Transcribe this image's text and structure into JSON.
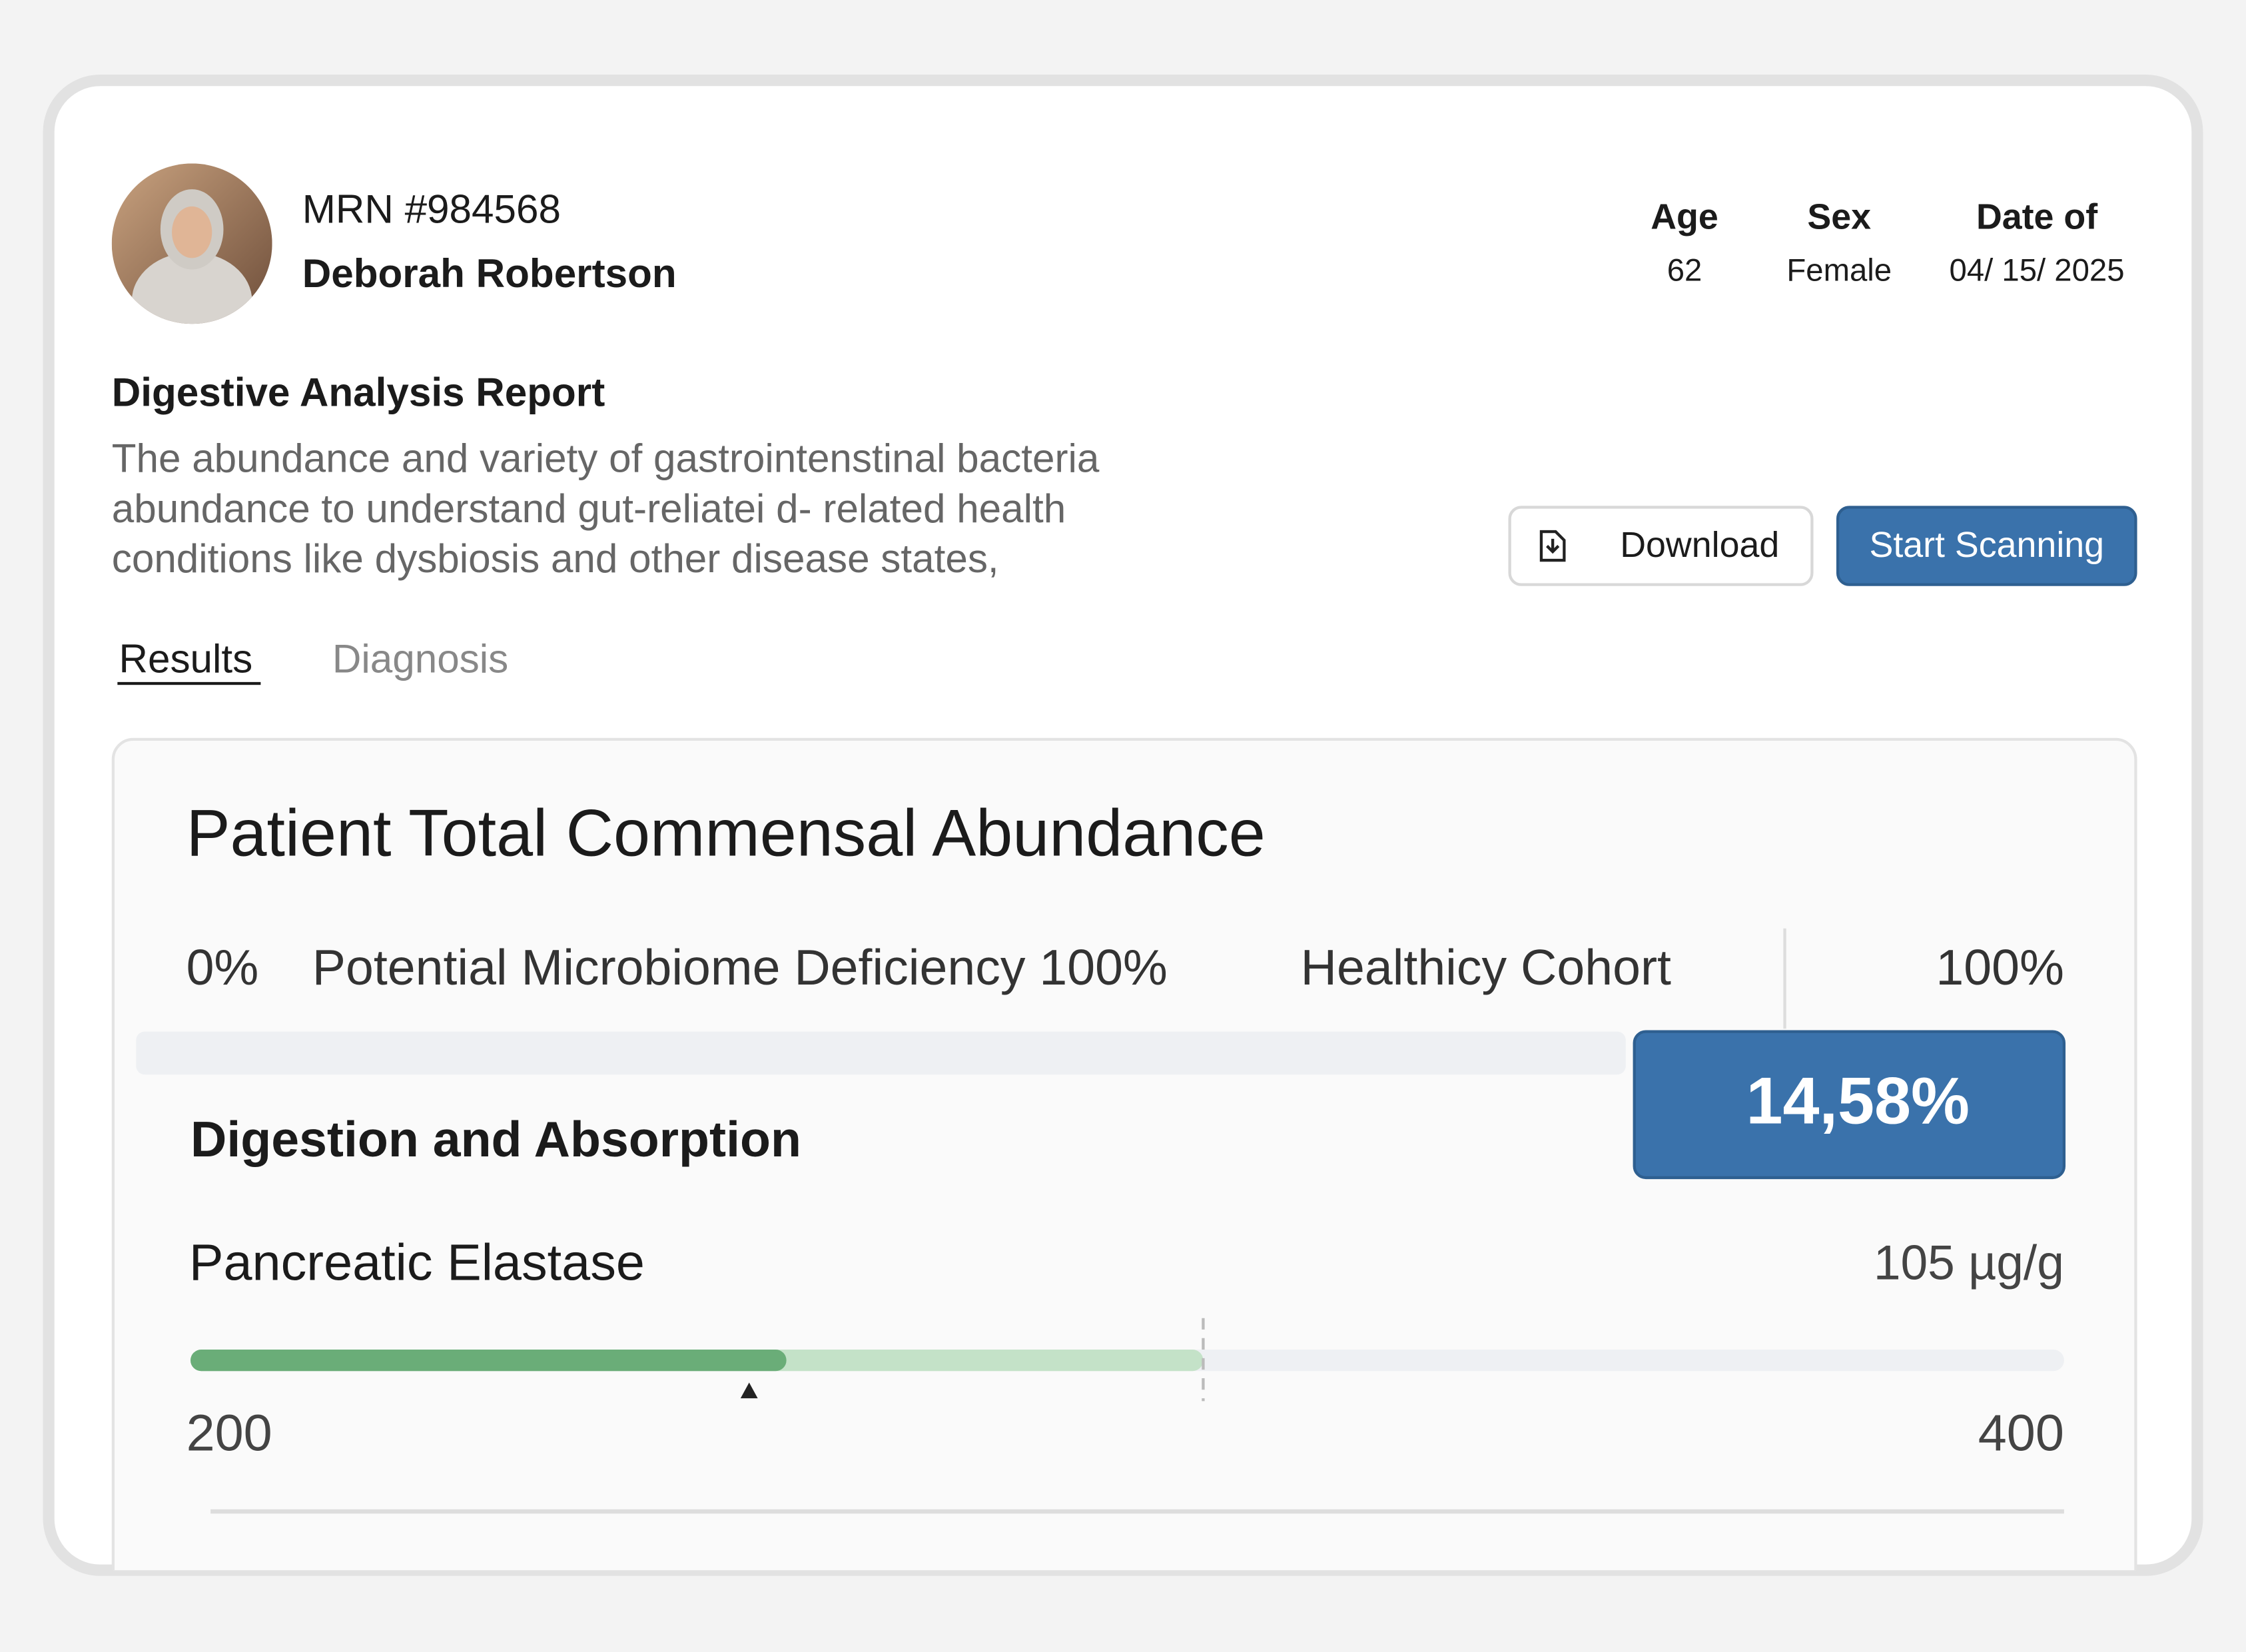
{
  "header": {
    "mrn": "MRN #984568",
    "name": "Deborah Robertson",
    "fields": [
      {
        "label": "Age",
        "value": "62"
      },
      {
        "label": "Sex",
        "value": "Female"
      },
      {
        "label": "Date of",
        "value": "04/ 15/ 2025"
      }
    ]
  },
  "report": {
    "title": "Digestive Analysis Report",
    "description": [
      "The abundance and variety of gastrointenstinal bacteria",
      "abundance to understand gut-reliatei d- related health",
      "conditions like dysbiosis and other disease states,"
    ]
  },
  "buttons": {
    "download": "Download",
    "scan": "Start Scanning"
  },
  "tabs": [
    "Results",
    "Diagnosis"
  ],
  "card": {
    "title": "Patient Total Commensal Abundance",
    "scale_low": "0%",
    "deficiency": "Potential Microbiome Deficiency 100%",
    "cohort": "Healthicy Cohort",
    "scale_high": "100%",
    "score": "14,58%",
    "section": "Digestion and Absorption",
    "marker": "Pancreatic Elastase",
    "marker_value": "105 µg/g",
    "range_low": "200",
    "range_high": "400"
  }
}
